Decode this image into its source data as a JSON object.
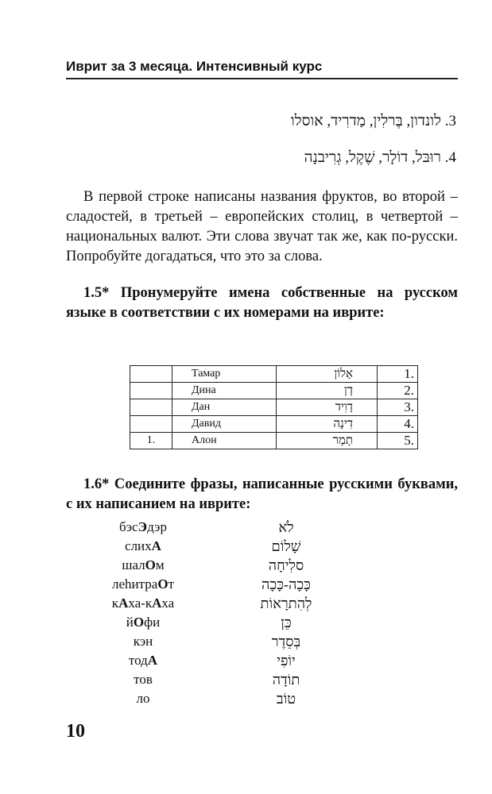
{
  "header": {
    "title": "Иврит за 3 месяца. Интенсивный курс"
  },
  "hebrew_lines": [
    "3. לונדון, בֶּרלִין, מַדרִיד, אוסלו",
    "4. רוּבּל, דוֹלָר, שֶׁקֶל, גְרִיבנָה"
  ],
  "paragraph": "В первой строке написаны названия фруктов, во второй – сладостей, в третьей – европейских столиц, в четвертой – национальных валют. Эти слова звучат так же, как по-русски. Попробуйте догадаться, что это за слова.",
  "task_1_5": {
    "title": "1.5* Пронумеруйте имена собственные на русском языке в соответствии с их номерами на иврите:",
    "rows": [
      [
        "",
        "Тамар",
        "אָלוֹן",
        ".1"
      ],
      [
        "",
        "Дина",
        "דָן",
        ".2"
      ],
      [
        "",
        "Дан",
        "דָוִיד",
        ".3"
      ],
      [
        "",
        "Давид",
        "דִינָה",
        ".4"
      ],
      [
        "1.",
        "Алон",
        "תָמָר",
        ".5"
      ]
    ]
  },
  "task_1_6": {
    "title": "1.6* Соедините фразы, написанные русскими буквами, с их написанием на иврите:",
    "russian": [
      [
        "бэс",
        "Э",
        "дэр"
      ],
      [
        "слих",
        "А",
        ""
      ],
      [
        "шал",
        "О",
        "м"
      ],
      [
        "леhитра",
        "О",
        "т"
      ],
      [
        "к",
        "А",
        "ха-к",
        "А",
        "ха"
      ],
      [
        "й",
        "О",
        "фи"
      ],
      [
        "кэн",
        "",
        ""
      ],
      [
        "тод",
        "А",
        ""
      ],
      [
        "тов",
        "",
        ""
      ],
      [
        "ло",
        "",
        ""
      ]
    ],
    "hebrew": [
      "לֹא",
      "שָׁלוֹם",
      "סלִיחָה",
      "כָּכָה-כָּכָה",
      "לְהִתרָאוֹת",
      "כֵּן",
      "בְּסֵדֶר",
      "יוֹפִי",
      "תוֹדָה",
      "טוֹב"
    ]
  },
  "page_number": "10"
}
